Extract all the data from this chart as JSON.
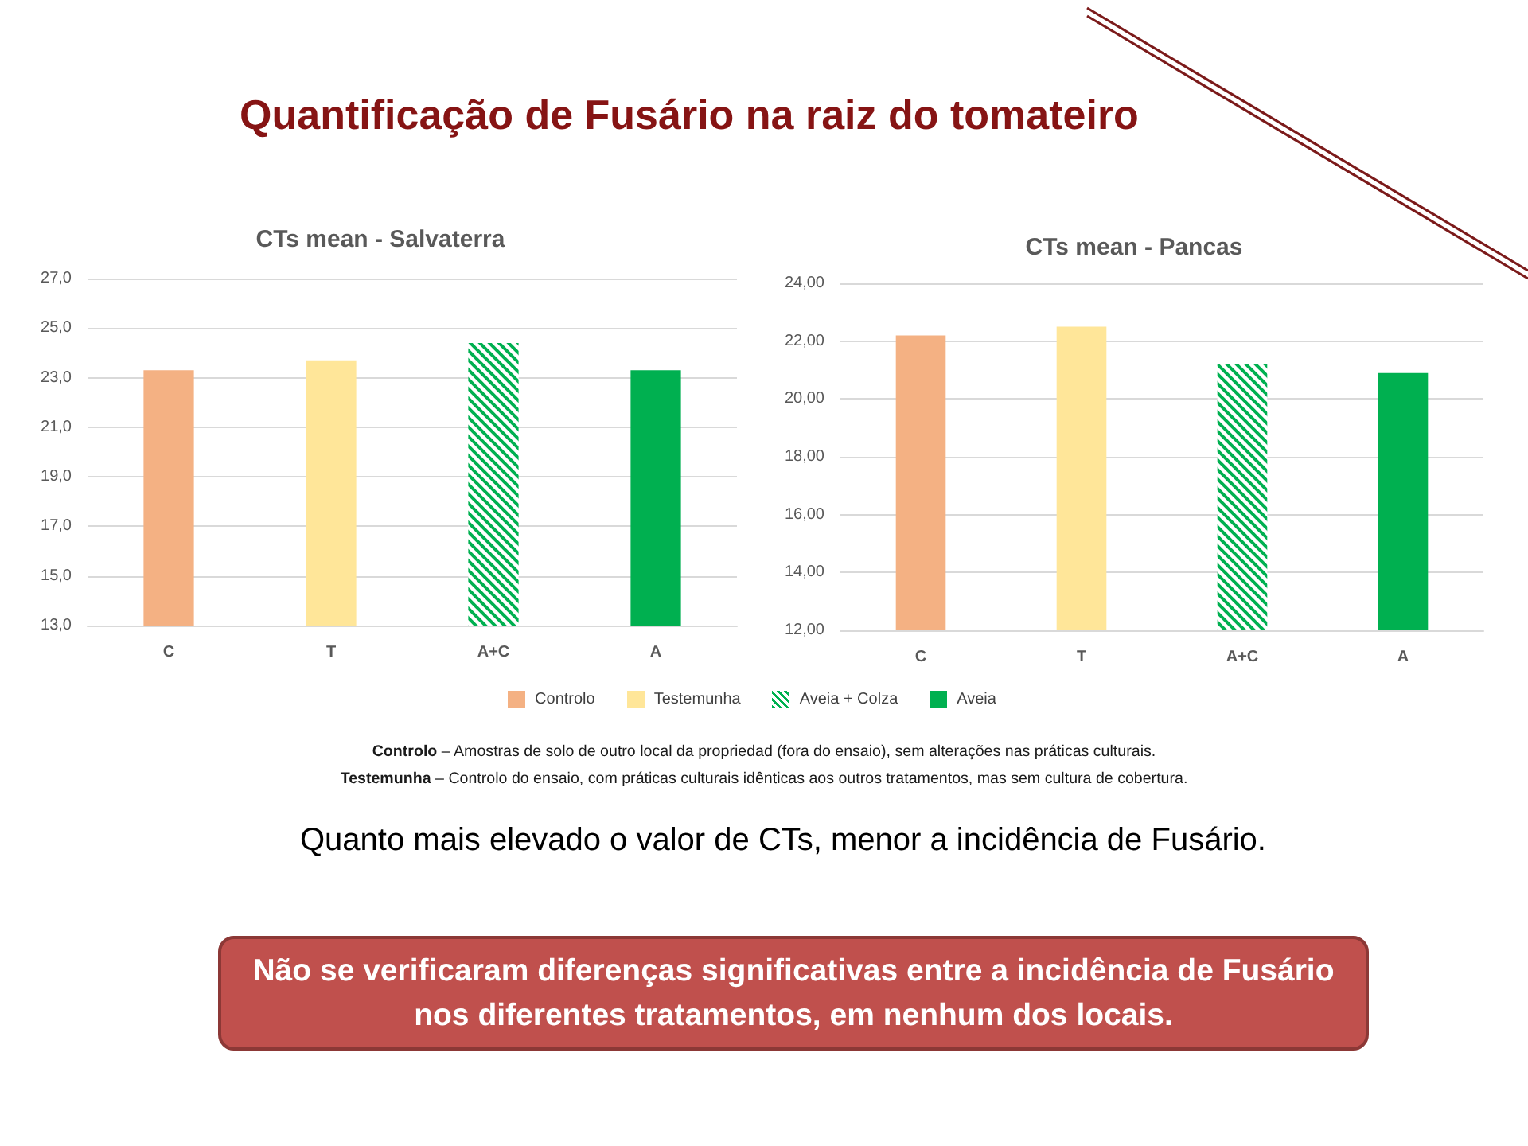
{
  "chart_data": [
    {
      "type": "bar",
      "title": "CTs mean - Salvaterra",
      "categories": [
        "C",
        "T",
        "A+C",
        "A"
      ],
      "series": [
        {
          "name": "Controlo",
          "color": "#f4b183",
          "values": [
            23.3,
            null,
            null,
            null
          ]
        },
        {
          "name": "Testemunha",
          "color": "#ffe699",
          "values": [
            null,
            23.7,
            null,
            null
          ]
        },
        {
          "name": "Aveia + Colza",
          "color": "#00b050",
          "values": [
            null,
            null,
            24.4,
            null
          ]
        },
        {
          "name": "Aveia",
          "color": "#00b050",
          "values": [
            null,
            null,
            null,
            23.3
          ]
        }
      ],
      "ylim": [
        13,
        27
      ],
      "yticks": [
        {
          "value": 13,
          "label": "13,0"
        },
        {
          "value": 15,
          "label": "15,0"
        },
        {
          "value": 17,
          "label": "17,0"
        },
        {
          "value": 19,
          "label": "19,0"
        },
        {
          "value": 21,
          "label": "21,0"
        },
        {
          "value": 23,
          "label": "23,0"
        },
        {
          "value": 25,
          "label": "25,0"
        },
        {
          "value": 27,
          "label": "27,0"
        }
      ],
      "grid": "y",
      "legend": "bottom"
    },
    {
      "type": "bar",
      "title": "CTs mean - Pancas",
      "categories": [
        "C",
        "T",
        "A+C",
        "A"
      ],
      "series": [
        {
          "name": "Controlo",
          "color": "#f4b183",
          "values": [
            22.2,
            null,
            null,
            null
          ]
        },
        {
          "name": "Testemunha",
          "color": "#ffe699",
          "values": [
            null,
            22.5,
            null,
            null
          ]
        },
        {
          "name": "Aveia + Colza",
          "color": "#00b050",
          "values": [
            null,
            null,
            21.2,
            null
          ]
        },
        {
          "name": "Aveia",
          "color": "#00b050",
          "values": [
            null,
            null,
            null,
            20.9
          ]
        }
      ],
      "ylim": [
        12,
        24
      ],
      "yticks": [
        {
          "value": 12,
          "label": "12,00"
        },
        {
          "value": 14,
          "label": "14,00"
        },
        {
          "value": 16,
          "label": "16,00"
        },
        {
          "value": 18,
          "label": "18,00"
        },
        {
          "value": 20,
          "label": "20,00"
        },
        {
          "value": 22,
          "label": "22,00"
        },
        {
          "value": 24,
          "label": "24,00"
        }
      ],
      "grid": "y",
      "legend": "bottom"
    },
    {
      "type": "other",
      "title": "Quantificação de Fusário na raiz do tomateiro",
      "annotations": [
        "Controlo – Amostras de solo de outro local da propriedad (fora do ensaio), sem alterações nas práticas culturais.",
        "Testemunha – Controlo do ensaio, com práticas culturais idênticas aos outros tratamentos, mas sem cultura de cobertura.",
        "Quanto mais elevado o valor de CTs, menor a incidência de Fusário.",
        "Não se verificaram diferenças significativas entre a incidência de Fusário nos diferentes tratamentos, em nenhum dos locais."
      ]
    }
  ]
}
